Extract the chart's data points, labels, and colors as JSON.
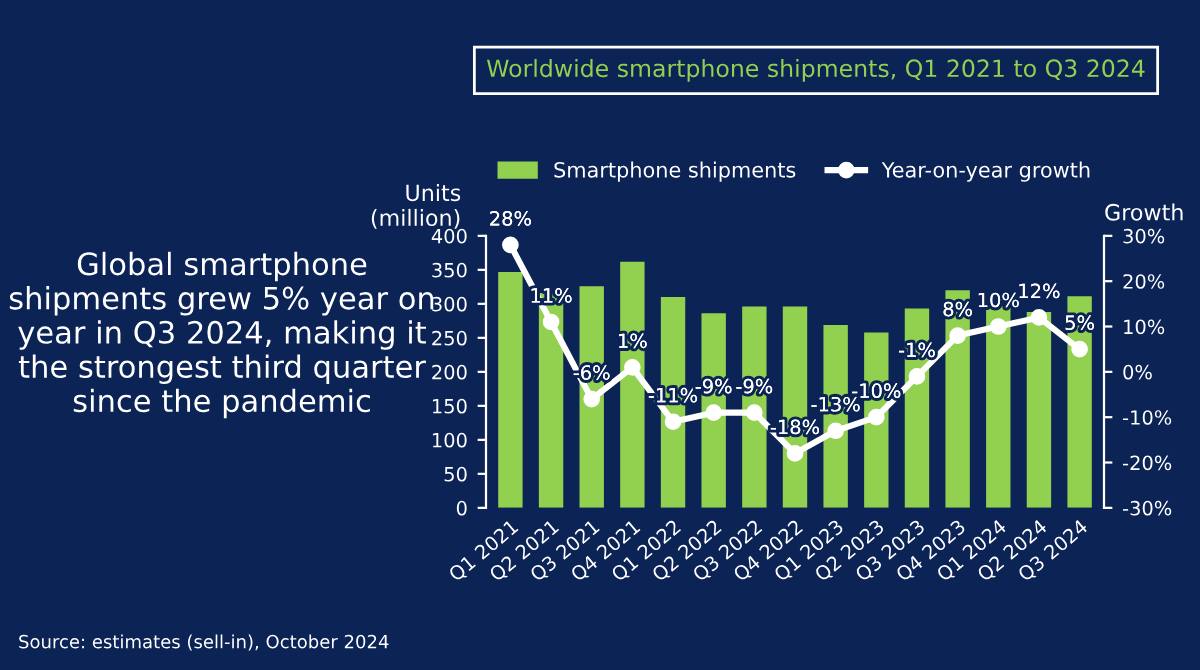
{
  "chart_data": {
    "type": "bar",
    "title": "Worldwide smartphone shipments, Q1 2021 to Q3 2024",
    "categories": [
      "Q1 2021",
      "Q2 2021",
      "Q3 2021",
      "Q4 2021",
      "Q1 2022",
      "Q2 2022",
      "Q3 2022",
      "Q4 2022",
      "Q1 2023",
      "Q2 2023",
      "Q3 2023",
      "Q4 2023",
      "Q1 2024",
      "Q2 2024",
      "Q3 2024"
    ],
    "series": [
      {
        "name": "Smartphone shipments",
        "color": "#92d050",
        "values": [
          347,
          316,
          326,
          362,
          310,
          286,
          296,
          296,
          269,
          258,
          293,
          320,
          296,
          288,
          311
        ]
      },
      {
        "name": "Year-on-year growth",
        "type": "line",
        "axis": "y2",
        "color": "#ffffff",
        "marker": "circle",
        "values": [
          28,
          11,
          -6,
          1,
          -11,
          -9,
          -9,
          -18,
          -13,
          -10,
          -1,
          8,
          10,
          12,
          5
        ],
        "value_labels": [
          "28%",
          "11%",
          "-6%",
          "1%",
          "-11%",
          "-9%",
          "-9%",
          "-18%",
          "-13%",
          "-10%",
          "-1%",
          "8%",
          "10%",
          "12%",
          "5%"
        ]
      }
    ],
    "ylabel": "Units\n(million)",
    "y2label": "Growth",
    "ylim": [
      0,
      400
    ],
    "yticks": [
      0,
      50,
      100,
      150,
      200,
      250,
      300,
      350,
      400
    ],
    "y2lim": [
      -30,
      30
    ],
    "y2ticks": [
      {
        "value": -30,
        "label": "-30%"
      },
      {
        "value": -20,
        "label": "-20%"
      },
      {
        "value": -10,
        "label": "-10%"
      },
      {
        "value": 0,
        "label": "0%"
      },
      {
        "value": 10,
        "label": "10%"
      },
      {
        "value": 20,
        "label": "20%"
      },
      {
        "value": 30,
        "label": "30%"
      }
    ],
    "legend": "top",
    "grid": false,
    "annotations": [
      "Global smartphone shipments grew 5% year on year in Q3 2024, making it the strongest third quarter since the pandemic",
      "Source: estimates (sell-in), October 2024"
    ]
  }
}
